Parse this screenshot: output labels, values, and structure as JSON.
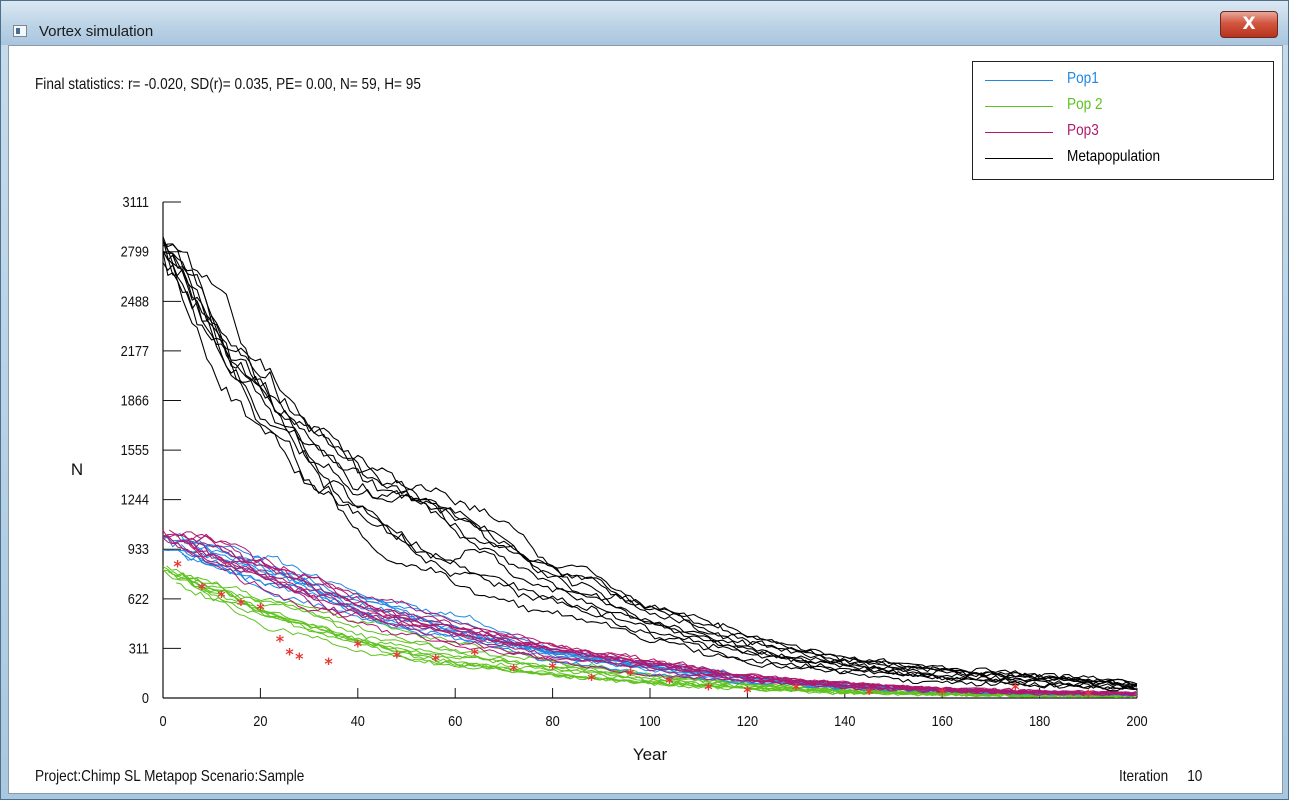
{
  "window": {
    "title": "Vortex simulation",
    "close_label": "X"
  },
  "header": {
    "final_statistics": "Final statistics: r= -0.020, SD(r)= 0.035, PE= 0.00, N= 59, H= 95"
  },
  "footer": {
    "project": "Project:Chimp SL Metapop  Scenario:Sample",
    "iteration_label": "Iteration",
    "iteration_value": "10"
  },
  "chart_data": {
    "type": "line",
    "xlabel": "Year",
    "ylabel": "N",
    "xlim": [
      0,
      200
    ],
    "ylim": [
      0,
      3111
    ],
    "x_ticks": [
      0,
      20,
      40,
      60,
      80,
      100,
      120,
      140,
      160,
      180,
      200
    ],
    "y_ticks": [
      0,
      311,
      622,
      933,
      1244,
      1555,
      1866,
      2177,
      2488,
      2799,
      3111
    ],
    "legend_position": "top-right",
    "iterations_shown": 10,
    "series": [
      {
        "name": "Pop1",
        "color": "#1e88e5",
        "label_color": "#1e88e5",
        "start_range": [
          920,
          1040
        ],
        "end_value": 25,
        "mean_trajectory": [
          [
            0,
            980
          ],
          [
            20,
            780
          ],
          [
            40,
            560
          ],
          [
            60,
            400
          ],
          [
            80,
            270
          ],
          [
            100,
            180
          ],
          [
            120,
            110
          ],
          [
            140,
            70
          ],
          [
            160,
            45
          ],
          [
            180,
            30
          ],
          [
            200,
            25
          ]
        ]
      },
      {
        "name": "Pop 2",
        "color": "#5dc21e",
        "label_color": "#5dc21e",
        "start_range": [
          760,
          830
        ],
        "end_value": 15,
        "mean_trajectory": [
          [
            0,
            800
          ],
          [
            20,
            560
          ],
          [
            40,
            390
          ],
          [
            60,
            270
          ],
          [
            80,
            185
          ],
          [
            100,
            120
          ],
          [
            120,
            75
          ],
          [
            140,
            45
          ],
          [
            160,
            30
          ],
          [
            180,
            20
          ],
          [
            200,
            15
          ]
        ]
      },
      {
        "name": "Pop3",
        "color": "#b0186e",
        "label_color": "#b0186e",
        "start_range": [
          990,
          1090
        ],
        "end_value": 30,
        "mean_trajectory": [
          [
            0,
            1050
          ],
          [
            20,
            840
          ],
          [
            40,
            610
          ],
          [
            60,
            450
          ],
          [
            80,
            310
          ],
          [
            100,
            210
          ],
          [
            120,
            130
          ],
          [
            140,
            85
          ],
          [
            160,
            55
          ],
          [
            180,
            40
          ],
          [
            200,
            30
          ]
        ]
      },
      {
        "name": "Metapopulation",
        "color": "#000000",
        "label_color": "#000000",
        "start_range": [
          2790,
          2840
        ],
        "end_value": 70,
        "mean_trajectory": [
          [
            0,
            2820
          ],
          [
            10,
            2400
          ],
          [
            20,
            1950
          ],
          [
            30,
            1600
          ],
          [
            40,
            1350
          ],
          [
            60,
            1000
          ],
          [
            80,
            700
          ],
          [
            100,
            470
          ],
          [
            120,
            310
          ],
          [
            140,
            210
          ],
          [
            160,
            150
          ],
          [
            180,
            110
          ],
          [
            200,
            70
          ]
        ]
      }
    ],
    "extinction_markers": {
      "symbol": "*",
      "color": "#e53935",
      "approx_points": [
        [
          3,
          830
        ],
        [
          8,
          690
        ],
        [
          12,
          640
        ],
        [
          16,
          590
        ],
        [
          20,
          560
        ],
        [
          24,
          360
        ],
        [
          26,
          280
        ],
        [
          28,
          250
        ],
        [
          34,
          220
        ],
        [
          40,
          330
        ],
        [
          48,
          260
        ],
        [
          56,
          240
        ],
        [
          64,
          280
        ],
        [
          72,
          180
        ],
        [
          80,
          190
        ],
        [
          88,
          120
        ],
        [
          96,
          150
        ],
        [
          104,
          100
        ],
        [
          112,
          60
        ],
        [
          120,
          40
        ],
        [
          130,
          60
        ],
        [
          145,
          30
        ],
        [
          160,
          30
        ],
        [
          175,
          60
        ],
        [
          190,
          20
        ]
      ]
    }
  }
}
